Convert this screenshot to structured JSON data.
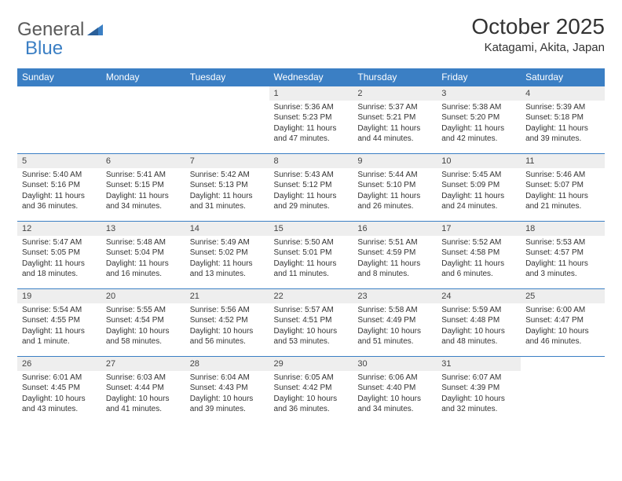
{
  "logo": {
    "text1": "General",
    "text2": "Blue"
  },
  "title": "October 2025",
  "location": "Katagami, Akita, Japan",
  "colors": {
    "header_bg": "#3b7fc4",
    "header_text": "#ffffff",
    "daynum_bg": "#eeeeee",
    "border": "#3b7fc4",
    "page_bg": "#ffffff",
    "body_text": "#333333"
  },
  "dayHeaders": [
    "Sunday",
    "Monday",
    "Tuesday",
    "Wednesday",
    "Thursday",
    "Friday",
    "Saturday"
  ],
  "weeks": [
    [
      null,
      null,
      null,
      {
        "n": "1",
        "sr": "5:36 AM",
        "ss": "5:23 PM",
        "dl": "11 hours and 47 minutes."
      },
      {
        "n": "2",
        "sr": "5:37 AM",
        "ss": "5:21 PM",
        "dl": "11 hours and 44 minutes."
      },
      {
        "n": "3",
        "sr": "5:38 AM",
        "ss": "5:20 PM",
        "dl": "11 hours and 42 minutes."
      },
      {
        "n": "4",
        "sr": "5:39 AM",
        "ss": "5:18 PM",
        "dl": "11 hours and 39 minutes."
      }
    ],
    [
      {
        "n": "5",
        "sr": "5:40 AM",
        "ss": "5:16 PM",
        "dl": "11 hours and 36 minutes."
      },
      {
        "n": "6",
        "sr": "5:41 AM",
        "ss": "5:15 PM",
        "dl": "11 hours and 34 minutes."
      },
      {
        "n": "7",
        "sr": "5:42 AM",
        "ss": "5:13 PM",
        "dl": "11 hours and 31 minutes."
      },
      {
        "n": "8",
        "sr": "5:43 AM",
        "ss": "5:12 PM",
        "dl": "11 hours and 29 minutes."
      },
      {
        "n": "9",
        "sr": "5:44 AM",
        "ss": "5:10 PM",
        "dl": "11 hours and 26 minutes."
      },
      {
        "n": "10",
        "sr": "5:45 AM",
        "ss": "5:09 PM",
        "dl": "11 hours and 24 minutes."
      },
      {
        "n": "11",
        "sr": "5:46 AM",
        "ss": "5:07 PM",
        "dl": "11 hours and 21 minutes."
      }
    ],
    [
      {
        "n": "12",
        "sr": "5:47 AM",
        "ss": "5:05 PM",
        "dl": "11 hours and 18 minutes."
      },
      {
        "n": "13",
        "sr": "5:48 AM",
        "ss": "5:04 PM",
        "dl": "11 hours and 16 minutes."
      },
      {
        "n": "14",
        "sr": "5:49 AM",
        "ss": "5:02 PM",
        "dl": "11 hours and 13 minutes."
      },
      {
        "n": "15",
        "sr": "5:50 AM",
        "ss": "5:01 PM",
        "dl": "11 hours and 11 minutes."
      },
      {
        "n": "16",
        "sr": "5:51 AM",
        "ss": "4:59 PM",
        "dl": "11 hours and 8 minutes."
      },
      {
        "n": "17",
        "sr": "5:52 AM",
        "ss": "4:58 PM",
        "dl": "11 hours and 6 minutes."
      },
      {
        "n": "18",
        "sr": "5:53 AM",
        "ss": "4:57 PM",
        "dl": "11 hours and 3 minutes."
      }
    ],
    [
      {
        "n": "19",
        "sr": "5:54 AM",
        "ss": "4:55 PM",
        "dl": "11 hours and 1 minute."
      },
      {
        "n": "20",
        "sr": "5:55 AM",
        "ss": "4:54 PM",
        "dl": "10 hours and 58 minutes."
      },
      {
        "n": "21",
        "sr": "5:56 AM",
        "ss": "4:52 PM",
        "dl": "10 hours and 56 minutes."
      },
      {
        "n": "22",
        "sr": "5:57 AM",
        "ss": "4:51 PM",
        "dl": "10 hours and 53 minutes."
      },
      {
        "n": "23",
        "sr": "5:58 AM",
        "ss": "4:49 PM",
        "dl": "10 hours and 51 minutes."
      },
      {
        "n": "24",
        "sr": "5:59 AM",
        "ss": "4:48 PM",
        "dl": "10 hours and 48 minutes."
      },
      {
        "n": "25",
        "sr": "6:00 AM",
        "ss": "4:47 PM",
        "dl": "10 hours and 46 minutes."
      }
    ],
    [
      {
        "n": "26",
        "sr": "6:01 AM",
        "ss": "4:45 PM",
        "dl": "10 hours and 43 minutes."
      },
      {
        "n": "27",
        "sr": "6:03 AM",
        "ss": "4:44 PM",
        "dl": "10 hours and 41 minutes."
      },
      {
        "n": "28",
        "sr": "6:04 AM",
        "ss": "4:43 PM",
        "dl": "10 hours and 39 minutes."
      },
      {
        "n": "29",
        "sr": "6:05 AM",
        "ss": "4:42 PM",
        "dl": "10 hours and 36 minutes."
      },
      {
        "n": "30",
        "sr": "6:06 AM",
        "ss": "4:40 PM",
        "dl": "10 hours and 34 minutes."
      },
      {
        "n": "31",
        "sr": "6:07 AM",
        "ss": "4:39 PM",
        "dl": "10 hours and 32 minutes."
      },
      null
    ]
  ],
  "labels": {
    "sunrise": "Sunrise:",
    "sunset": "Sunset:",
    "daylight": "Daylight:"
  }
}
